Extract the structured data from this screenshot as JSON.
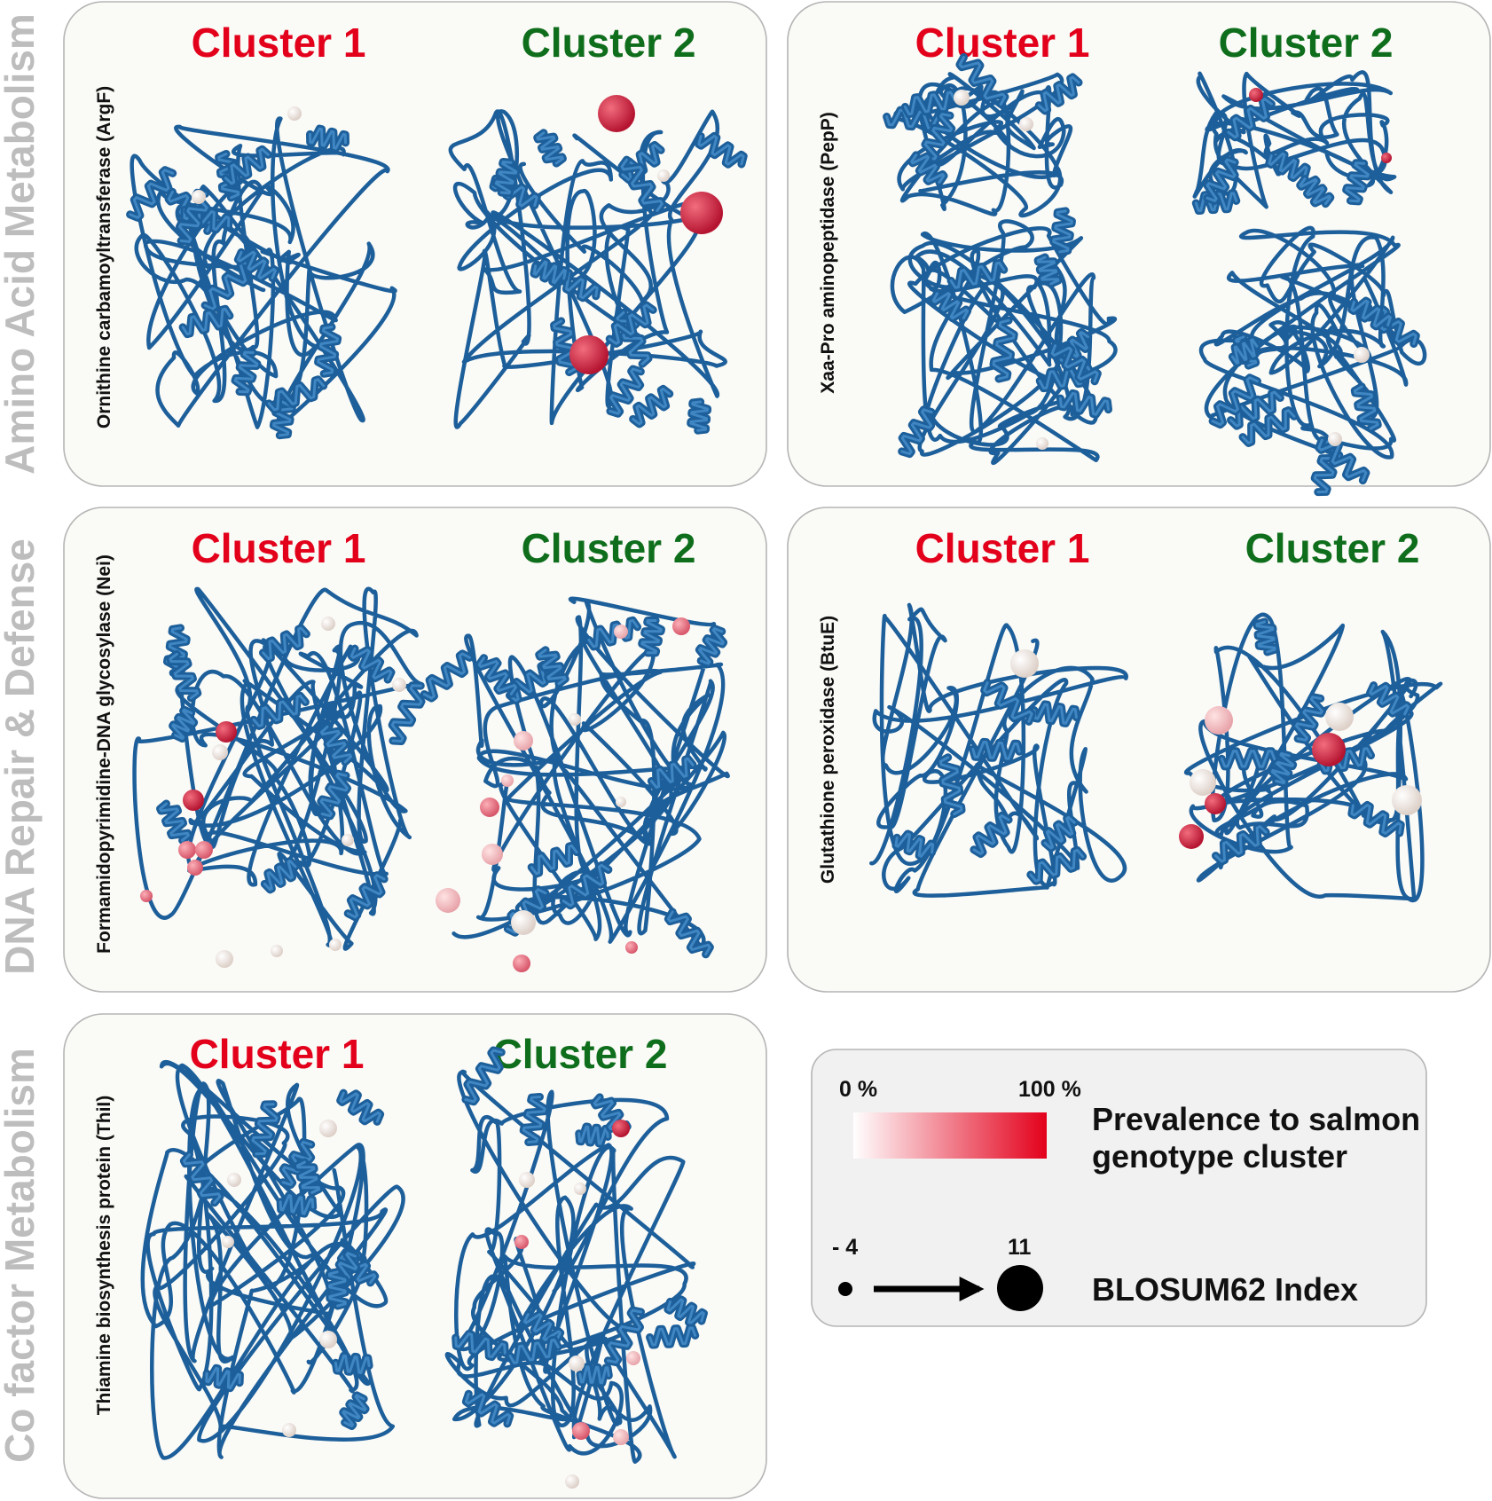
{
  "sections": [
    {
      "label": "Amino Acid Metabolism"
    },
    {
      "label": "DNA Repair & Defense"
    },
    {
      "label": "Co factor Metabolism"
    }
  ],
  "colors": {
    "cluster1": "#e3001b",
    "cluster2": "#0f6e1c",
    "ribbon": "#1d5f9a",
    "section_text": "#bdbdbd"
  },
  "panels": [
    {
      "protein": "Ornithine carbamoyltransferase (ArgF)",
      "clusters": [
        "Cluster 1",
        "Cluster 2"
      ]
    },
    {
      "protein": "Xaa-Pro aminopeptidase (PepP)",
      "clusters": [
        "Cluster 1",
        "Cluster 2"
      ]
    },
    {
      "protein": "Formamidopyrimidine-DNA glycosylase (Nei)",
      "clusters": [
        "Cluster 1",
        "Cluster 2"
      ]
    },
    {
      "protein": "Glutathione peroxidase (BtuE)",
      "clusters": [
        "Cluster 1",
        "Cluster 2"
      ]
    },
    {
      "protein": "Thiamine biosynthesis protein (ThiI)",
      "clusters": [
        "Cluster 1",
        "Cluster 2"
      ]
    }
  ],
  "legend": {
    "prevalence": {
      "min_label": "0 %",
      "max_label": "100 %",
      "title_line1": "Prevalence to salmon",
      "title_line2": "genotype cluster"
    },
    "blosum": {
      "min_label": "- 4",
      "max_label": "11",
      "title": "BLOSUM62 Index"
    }
  }
}
